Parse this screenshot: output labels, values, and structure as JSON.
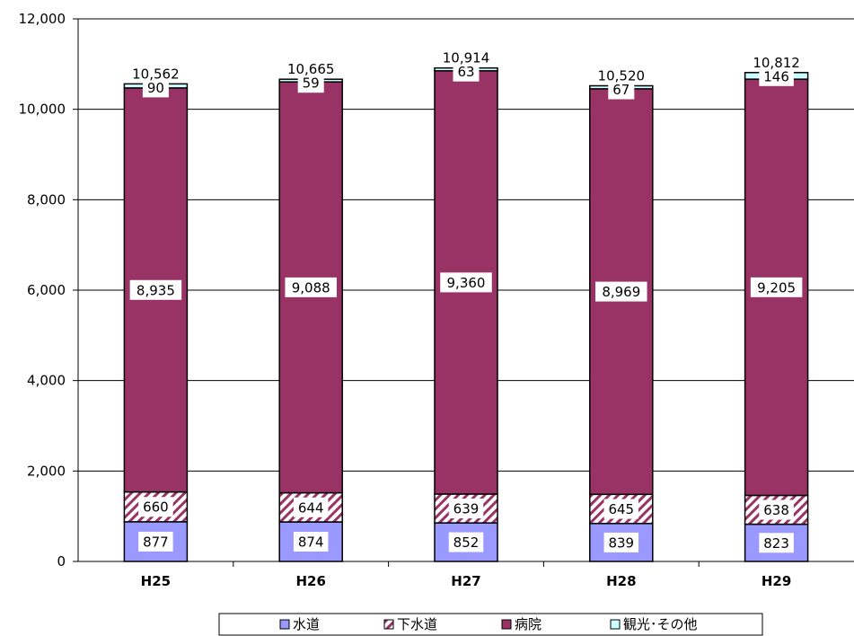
{
  "chart_data": {
    "type": "bar",
    "stacked": true,
    "categories": [
      "H25",
      "H26",
      "H27",
      "H28",
      "H29"
    ],
    "series": [
      {
        "name": "水道",
        "values": [
          877,
          874,
          852,
          839,
          823
        ],
        "color": "#9999ff",
        "pattern": "solid"
      },
      {
        "name": "下水道",
        "values": [
          660,
          644,
          639,
          645,
          638
        ],
        "color": "#993366",
        "pattern": "diagonal-hatch"
      },
      {
        "name": "病院",
        "values": [
          8935,
          9088,
          9360,
          8969,
          9205
        ],
        "color": "#993366",
        "pattern": "solid"
      },
      {
        "name": "観光･その他",
        "values": [
          90,
          59,
          63,
          67,
          146
        ],
        "color": "#ccffff",
        "pattern": "solid"
      }
    ],
    "totals": [
      "10,562",
      "10,665",
      "10,914",
      "10,520",
      "10,812"
    ],
    "y_tick_labels": [
      "0",
      "2,000",
      "4,000",
      "6,000",
      "8,000",
      "10,000",
      "12,000"
    ],
    "ylim": [
      0,
      12000
    ],
    "grid": true,
    "legend_position": "bottom"
  }
}
